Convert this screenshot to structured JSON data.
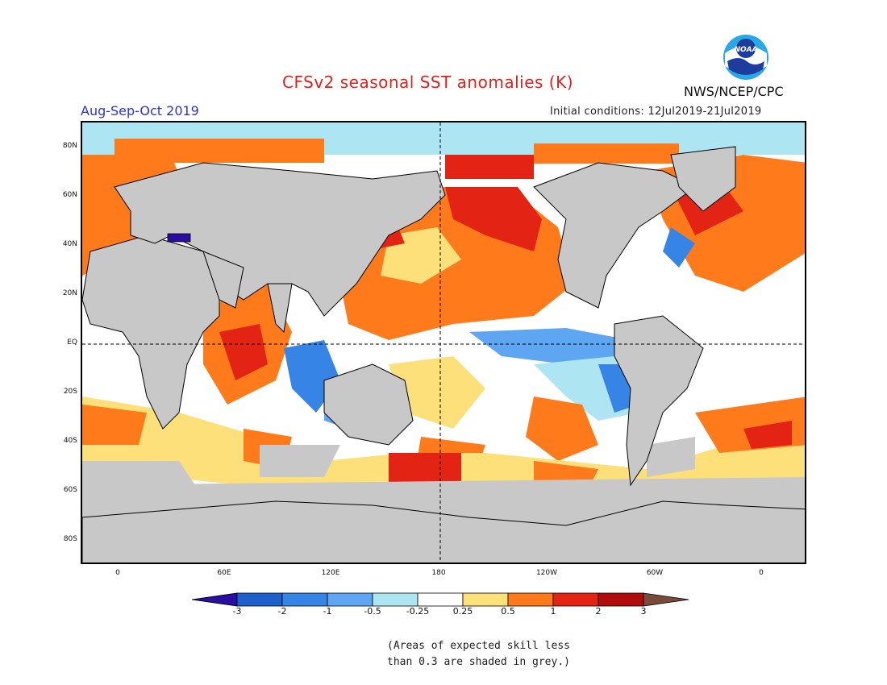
{
  "header": {
    "title": "CFSv2 seasonal SST anomalies (K)",
    "season": "Aug-Sep-Oct 2019",
    "initial_conditions": "Initial conditions: 12Jul2019-21Jul2019",
    "agency": "NWS/NCEP/CPC",
    "logo_text": "NOAA"
  },
  "map": {
    "lat_ticks": [
      "80N",
      "60N",
      "40N",
      "20N",
      "EQ",
      "20S",
      "40S",
      "60S",
      "80S"
    ],
    "lon_ticks": [
      "0",
      "60E",
      "120E",
      "180",
      "120W",
      "60W",
      "0"
    ],
    "land_color": "#c8c8c8",
    "grid_lines": "dashed equator and dateline"
  },
  "colorbar": {
    "labels": [
      "-3",
      "-2",
      "-1",
      "-0.5",
      "-0.25",
      "0.25",
      "0.5",
      "1",
      "2",
      "3"
    ],
    "colors": [
      "#2a0ea3",
      "#1f5fcc",
      "#3584e6",
      "#5fa6f2",
      "#aee5f2",
      "#ffffff",
      "#fde07a",
      "#ff7a1a",
      "#e32414",
      "#b00c0c",
      "#7a4a3a"
    ]
  },
  "footnote": {
    "line1": "(Areas of expected skill less",
    "line2": "than 0.3 are shaded in grey.)"
  }
}
